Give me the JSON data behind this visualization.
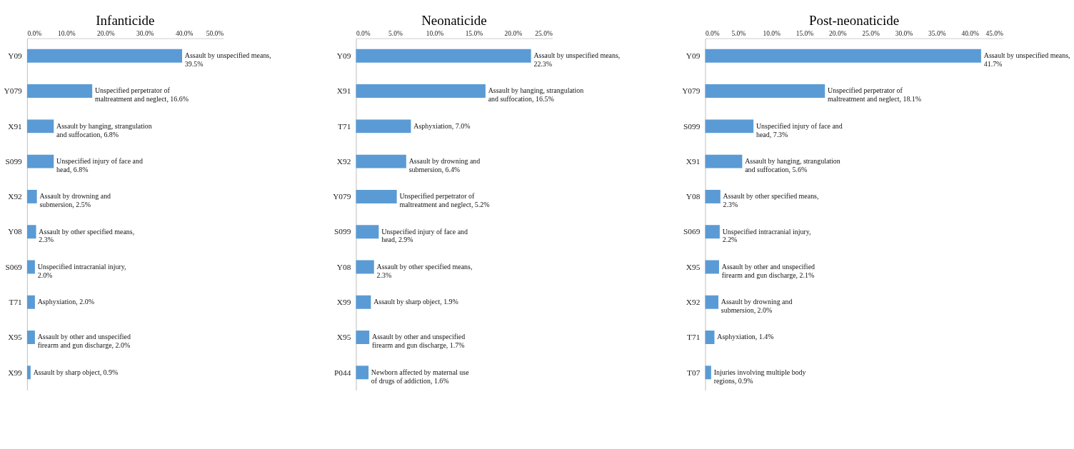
{
  "chart_data": [
    {
      "type": "bar",
      "orientation": "horizontal",
      "title": "Infanticide",
      "color": "#5b9bd5",
      "grid": false,
      "categories": [
        "Y09",
        "Y079",
        "X91",
        "S099",
        "X92",
        "Y08",
        "S069",
        "T71",
        "X95",
        "X99"
      ],
      "values": [
        39.5,
        16.6,
        6.8,
        6.8,
        2.5,
        2.3,
        2.0,
        2.0,
        2.0,
        0.9
      ],
      "value_labels": [
        "Assault by unspecified means, 39.5%",
        "Unspecified perpetrator of maltreatment and neglect, 16.6%",
        "Assault by hanging, strangulation and suffocation, 6.8%",
        "Unspecified injury of face and head, 6.8%",
        "Assault by drowning and submersion, 2.5%",
        "Assault by other specified means, 2.3%",
        "Unspecified intracranial injury, 2.0%",
        "Asphyxiation, 2.0%",
        "Assault by other and unspecified firearm and gun discharge, 2.0%",
        "Assault by sharp object, 0.9%"
      ],
      "xlim": [
        0,
        50
      ],
      "xticks": [
        {
          "value": 0,
          "label": "0.0%"
        },
        {
          "value": 10,
          "label": "10.0%"
        },
        {
          "value": 20,
          "label": "20.0%"
        },
        {
          "value": 30,
          "label": "30.0%"
        },
        {
          "value": 40,
          "label": "40.0%"
        },
        {
          "value": 50,
          "label": "50.0%"
        }
      ]
    },
    {
      "type": "bar",
      "orientation": "horizontal",
      "title": "Neonaticide",
      "color": "#5b9bd5",
      "grid": false,
      "categories": [
        "Y09",
        "X91",
        "T71",
        "X92",
        "Y079",
        "S099",
        "Y08",
        "X99",
        "X95",
        "P044"
      ],
      "values": [
        22.3,
        16.5,
        7.0,
        6.4,
        5.2,
        2.9,
        2.3,
        1.9,
        1.7,
        1.6
      ],
      "value_labels": [
        "Assault by unspecified means, 22.3%",
        "Assault by hanging, strangulation and suffocation, 16.5%",
        "Asphyxiation, 7.0%",
        "Assault by drowning and submersion, 6.4%",
        "Unspecified perpetrator of maltreatment and neglect, 5.2%",
        "Unspecified injury of face and head, 2.9%",
        "Assault by other specified means, 2.3%",
        "Assault by sharp object, 1.9%",
        "Assault by other and unspecified firearm and gun discharge, 1.7%",
        "Newborn affected by maternal use of drugs of addiction, 1.6%"
      ],
      "xlim": [
        0,
        25
      ],
      "xticks": [
        {
          "value": 0,
          "label": "0.0%"
        },
        {
          "value": 5,
          "label": "5.0%"
        },
        {
          "value": 10,
          "label": "10.0%"
        },
        {
          "value": 15,
          "label": "15.0%"
        },
        {
          "value": 20,
          "label": "20.0%"
        },
        {
          "value": 25,
          "label": "25.0%"
        }
      ]
    },
    {
      "type": "bar",
      "orientation": "horizontal",
      "title": "Post-neonaticide",
      "color": "#5b9bd5",
      "grid": false,
      "categories": [
        "Y09",
        "Y079",
        "S099",
        "X91",
        "Y08",
        "S069",
        "X95",
        "X92",
        "T71",
        "T07"
      ],
      "values": [
        41.7,
        18.1,
        7.3,
        5.6,
        2.3,
        2.2,
        2.1,
        2.0,
        1.4,
        0.9
      ],
      "value_labels": [
        "Assault by unspecified means, 41.7%",
        "Unspecified perpetrator of maltreatment and neglect, 18.1%",
        "Unspecified injury of face and head, 7.3%",
        "Assault by hanging, strangulation and suffocation, 5.6%",
        "Assault by other specified means, 2.3%",
        "Unspecified intracranial injury, 2.2%",
        "Assault by other and unspecified firearm and gun discharge, 2.1%",
        "Assault by drowning and submersion, 2.0%",
        "Asphyxiation, 1.4%",
        "Injuries involving multiple body regions, 0.9%"
      ],
      "xlim": [
        0,
        45
      ],
      "xticks": [
        {
          "value": 0,
          "label": "0.0%"
        },
        {
          "value": 5,
          "label": "5.0%"
        },
        {
          "value": 10,
          "label": "10.0%"
        },
        {
          "value": 15,
          "label": "15.0%"
        },
        {
          "value": 20,
          "label": "20.0%"
        },
        {
          "value": 25,
          "label": "25.0%"
        },
        {
          "value": 30,
          "label": "30.0%"
        },
        {
          "value": 35,
          "label": "35.0%"
        },
        {
          "value": 40,
          "label": "40.0%"
        },
        {
          "value": 45,
          "label": "45.0%"
        }
      ]
    }
  ]
}
